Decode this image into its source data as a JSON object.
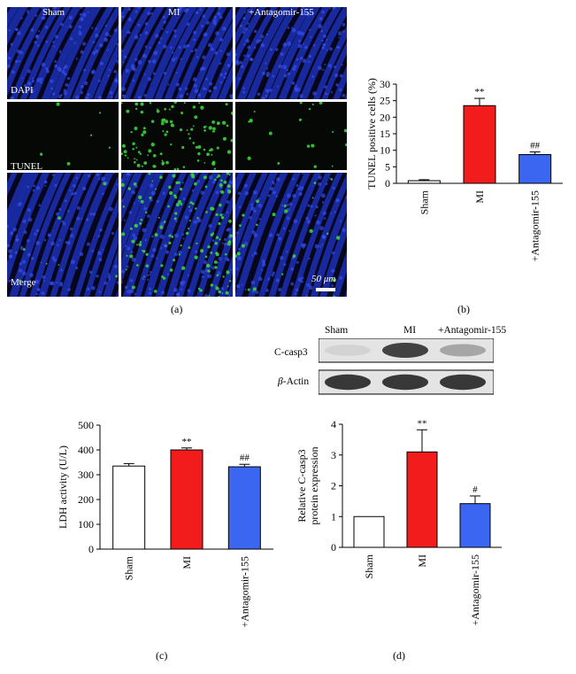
{
  "figure": {
    "column_labels": [
      "Sham",
      "MI",
      "+Antagomir-155"
    ],
    "row_labels": [
      "DAPI",
      "TUNEL",
      "Merge"
    ],
    "scale_bar": "50 μm",
    "panel_letters": [
      "(a)",
      "(b)",
      "(c)",
      "(d)"
    ],
    "colors": {
      "sham": "#ffffff",
      "mi": "#f21c1c",
      "antagomir": "#3a66f2",
      "dapi": "#1d36c8",
      "tunel": "#3cd23c"
    }
  },
  "blot": {
    "lanes": [
      "Sham",
      "MI",
      "+Antagomir-155"
    ],
    "rows": [
      {
        "label": "C-casp3",
        "intensity": [
          0.12,
          0.85,
          0.35
        ]
      },
      {
        "label_prefix": "β",
        "label_suffix": "-Actin",
        "intensity": [
          0.9,
          0.9,
          0.9
        ]
      }
    ]
  },
  "chart_data": [
    {
      "type": "bar",
      "panel": "(b)",
      "categories": [
        "Sham",
        "MI",
        "+Antagomir-155"
      ],
      "values": [
        0.8,
        23.5,
        8.7
      ],
      "errors": [
        0.3,
        2.2,
        0.8
      ],
      "annotations": [
        "",
        "**",
        "##"
      ],
      "ylabel": "TUNEL positive cells (%)",
      "ylim": [
        0,
        30
      ],
      "yticks": [
        0,
        5,
        10,
        15,
        20,
        25,
        30
      ],
      "colors": [
        "#ffffff",
        "#f21c1c",
        "#3a66f2"
      ]
    },
    {
      "type": "bar",
      "panel": "(c)",
      "categories": [
        "Sham",
        "MI",
        "+Antagomir-155"
      ],
      "values": [
        335,
        400,
        332
      ],
      "errors": [
        10,
        8,
        10
      ],
      "annotations": [
        "",
        "**",
        "##"
      ],
      "ylabel": "LDH activity (U/L)",
      "ylim": [
        0,
        500
      ],
      "yticks": [
        0,
        100,
        200,
        300,
        400,
        500
      ],
      "colors": [
        "#ffffff",
        "#f21c1c",
        "#3a66f2"
      ]
    },
    {
      "type": "bar",
      "panel": "(d)",
      "categories": [
        "Sham",
        "MI",
        "+Antagomir-155"
      ],
      "values": [
        1.0,
        3.1,
        1.42
      ],
      "errors": [
        0,
        0.72,
        0.25
      ],
      "annotations": [
        "",
        "**",
        "#"
      ],
      "ylabel_lines": [
        "Relative C-casp3",
        "protein expression"
      ],
      "ylim": [
        0,
        4
      ],
      "yticks": [
        0,
        1,
        2,
        3,
        4
      ],
      "colors": [
        "#ffffff",
        "#f21c1c",
        "#3a66f2"
      ]
    }
  ]
}
